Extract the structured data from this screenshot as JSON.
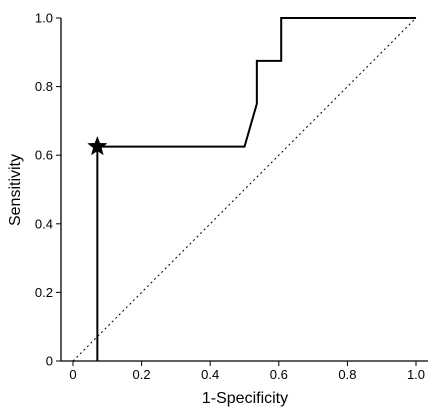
{
  "chart_data": {
    "type": "line",
    "title": "",
    "xlabel": "1-Specificity",
    "ylabel": "Sensitivity",
    "xlim": [
      0,
      1
    ],
    "ylim": [
      0,
      1
    ],
    "grid": false,
    "xticks": [
      0,
      0.2,
      0.4,
      0.6,
      0.8,
      1.0
    ],
    "xtick_labels": [
      "0",
      "0.2",
      "0.4",
      "0.6",
      "0.8",
      "1.0"
    ],
    "yticks": [
      0,
      0.2,
      0.4,
      0.6,
      0.8,
      1.0
    ],
    "ytick_labels": [
      "0",
      "0.2",
      "0.4",
      "0.6",
      "0.8",
      "1.0"
    ],
    "series": [
      {
        "style": "solid",
        "color": "#000000",
        "x": [
          0.071,
          0.071,
          0.5,
          0.536,
          0.536,
          0.607,
          0.607,
          1.0
        ],
        "y": [
          0.0,
          0.625,
          0.625,
          0.75,
          0.875,
          0.875,
          1.0,
          1.0
        ]
      },
      {
        "style": "dotted",
        "color": "#000000",
        "x": [
          0,
          1
        ],
        "y": [
          0,
          1
        ]
      }
    ],
    "markers": [
      {
        "shape": "star",
        "x": 0.071,
        "y": 0.625,
        "color": "#000000"
      }
    ]
  }
}
